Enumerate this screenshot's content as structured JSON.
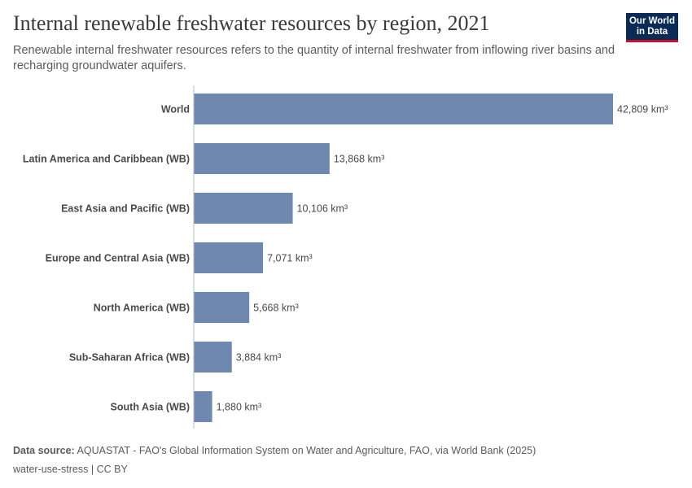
{
  "title": "Internal renewable freshwater resources by region, 2021",
  "subtitle": "Renewable internal freshwater resources refers to the quantity of internal freshwater from inflowing river basins and recharging groundwater aquifers.",
  "logo": {
    "line1": "Our World",
    "line2": "in Data",
    "bg_color": "#0b2b57",
    "accent_color": "#c8102e"
  },
  "chart_data": {
    "type": "bar",
    "orientation": "horizontal",
    "unit": "km³",
    "bar_color": "#6f88b0",
    "categories": [
      "World",
      "Latin America and Caribbean (WB)",
      "East Asia and Pacific (WB)",
      "Europe and Central Asia (WB)",
      "North America (WB)",
      "Sub-Saharan Africa (WB)",
      "South Asia (WB)"
    ],
    "values": [
      42809,
      13868,
      10106,
      7071,
      5668,
      3884,
      1880
    ],
    "value_labels": [
      "42,809 km³",
      "13,868 km³",
      "10,106 km³",
      "7,071 km³",
      "5,668 km³",
      "3,884 km³",
      "1,880 km³"
    ],
    "xlim": [
      0,
      42809
    ]
  },
  "footer": {
    "source_label": "Data source:",
    "source_text": "AQUASTAT - FAO's Global Information System on Water and Agriculture, FAO, via World Bank (2025)",
    "license": "water-use-stress | CC BY"
  }
}
